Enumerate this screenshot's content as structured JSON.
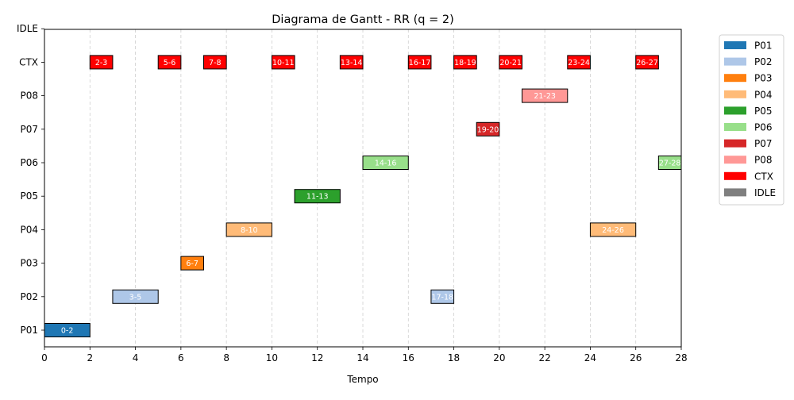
{
  "chart_data": {
    "type": "gantt",
    "title": "Diagrama de Gantt - RR (q = 2)",
    "xlabel": "Tempo",
    "ylabel": "",
    "xlim": [
      0,
      28
    ],
    "x_ticks": [
      0,
      2,
      4,
      6,
      8,
      10,
      12,
      14,
      16,
      18,
      20,
      22,
      24,
      26,
      28
    ],
    "rows": [
      "P01",
      "P02",
      "P03",
      "P04",
      "P05",
      "P06",
      "P07",
      "P08",
      "CTX",
      "IDLE"
    ],
    "grid": "vertical dashed at x ticks",
    "legend_position": "outside right, upper",
    "colors": {
      "P01": "#1f77b4",
      "P02": "#aec7e8",
      "P03": "#ff7f0e",
      "P04": "#ffbb78",
      "P05": "#2ca02c",
      "P06": "#98df8a",
      "P07": "#d62728",
      "P08": "#ff9896",
      "CTX": "#ff0000",
      "IDLE": "#7f7f7f"
    },
    "legend": [
      "P01",
      "P02",
      "P03",
      "P04",
      "P05",
      "P06",
      "P07",
      "P08",
      "CTX",
      "IDLE"
    ],
    "segments": [
      {
        "row": "P01",
        "start": 0,
        "end": 2,
        "label": "0-2"
      },
      {
        "row": "CTX",
        "start": 2,
        "end": 3,
        "label": "2-3"
      },
      {
        "row": "P02",
        "start": 3,
        "end": 5,
        "label": "3-5"
      },
      {
        "row": "CTX",
        "start": 5,
        "end": 6,
        "label": "5-6"
      },
      {
        "row": "P03",
        "start": 6,
        "end": 7,
        "label": "6-7"
      },
      {
        "row": "CTX",
        "start": 7,
        "end": 8,
        "label": "7-8"
      },
      {
        "row": "P04",
        "start": 8,
        "end": 10,
        "label": "8-10"
      },
      {
        "row": "CTX",
        "start": 10,
        "end": 11,
        "label": "10-11"
      },
      {
        "row": "P05",
        "start": 11,
        "end": 13,
        "label": "11-13"
      },
      {
        "row": "CTX",
        "start": 13,
        "end": 14,
        "label": "13-14"
      },
      {
        "row": "P06",
        "start": 14,
        "end": 16,
        "label": "14-16"
      },
      {
        "row": "CTX",
        "start": 16,
        "end": 17,
        "label": "16-17"
      },
      {
        "row": "P02",
        "start": 17,
        "end": 18,
        "label": "17-18"
      },
      {
        "row": "CTX",
        "start": 18,
        "end": 19,
        "label": "18-19"
      },
      {
        "row": "P07",
        "start": 19,
        "end": 20,
        "label": "19-20"
      },
      {
        "row": "CTX",
        "start": 20,
        "end": 21,
        "label": "20-21"
      },
      {
        "row": "P08",
        "start": 21,
        "end": 23,
        "label": "21-23"
      },
      {
        "row": "CTX",
        "start": 23,
        "end": 24,
        "label": "23-24"
      },
      {
        "row": "P04",
        "start": 24,
        "end": 26,
        "label": "24-26"
      },
      {
        "row": "CTX",
        "start": 26,
        "end": 27,
        "label": "26-27"
      },
      {
        "row": "P06",
        "start": 27,
        "end": 28,
        "label": "27-28"
      }
    ]
  }
}
